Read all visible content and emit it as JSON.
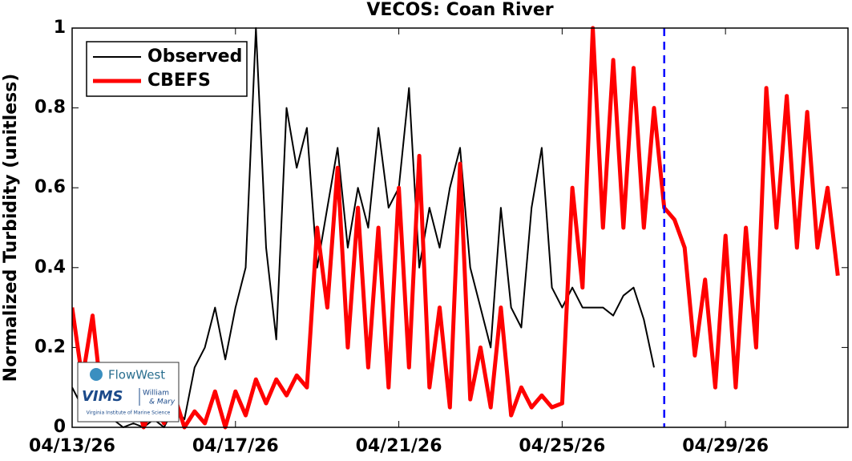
{
  "chart_data": {
    "type": "line",
    "title": "VECOS: Coan River",
    "y_label": "Normalized Turbidity (unitless)",
    "x": [
      "2026-04-13T00:00",
      "2026-04-13T06:00",
      "2026-04-13T12:00",
      "2026-04-13T18:00",
      "2026-04-14T00:00",
      "2026-04-14T06:00",
      "2026-04-14T12:00",
      "2026-04-14T18:00",
      "2026-04-15T00:00",
      "2026-04-15T06:00",
      "2026-04-15T12:00",
      "2026-04-15T18:00",
      "2026-04-16T00:00",
      "2026-04-16T06:00",
      "2026-04-16T12:00",
      "2026-04-16T18:00",
      "2026-04-17T00:00",
      "2026-04-17T06:00",
      "2026-04-17T12:00",
      "2026-04-17T18:00",
      "2026-04-18T00:00",
      "2026-04-18T06:00",
      "2026-04-18T12:00",
      "2026-04-18T18:00",
      "2026-04-19T00:00",
      "2026-04-19T06:00",
      "2026-04-19T12:00",
      "2026-04-19T18:00",
      "2026-04-20T00:00",
      "2026-04-20T06:00",
      "2026-04-20T12:00",
      "2026-04-20T18:00",
      "2026-04-21T00:00",
      "2026-04-21T06:00",
      "2026-04-21T12:00",
      "2026-04-21T18:00",
      "2026-04-22T00:00",
      "2026-04-22T06:00",
      "2026-04-22T12:00",
      "2026-04-22T18:00",
      "2026-04-23T00:00",
      "2026-04-23T06:00",
      "2026-04-23T12:00",
      "2026-04-23T18:00",
      "2026-04-24T00:00",
      "2026-04-24T06:00",
      "2026-04-24T12:00",
      "2026-04-24T18:00",
      "2026-04-25T00:00",
      "2026-04-25T06:00",
      "2026-04-25T12:00",
      "2026-04-25T18:00",
      "2026-04-26T00:00",
      "2026-04-26T06:00",
      "2026-04-26T12:00",
      "2026-04-26T18:00",
      "2026-04-27T00:00",
      "2026-04-27T06:00",
      "2026-04-27T12:00",
      "2026-04-27T18:00",
      "2026-04-28T00:00",
      "2026-04-28T06:00",
      "2026-04-28T12:00",
      "2026-04-28T18:00",
      "2026-04-29T00:00",
      "2026-04-29T06:00",
      "2026-04-29T12:00",
      "2026-04-29T18:00",
      "2026-04-30T00:00",
      "2026-04-30T06:00",
      "2026-04-30T12:00",
      "2026-04-30T18:00",
      "2026-05-01T00:00",
      "2026-05-01T06:00",
      "2026-05-01T12:00",
      "2026-05-01T18:00"
    ],
    "series": [
      {
        "name": "Observed",
        "color": "#000000",
        "width": 2,
        "values": [
          0.1,
          0.05,
          0.03,
          0.02,
          0.02,
          0.0,
          0.01,
          0.0,
          0.02,
          0.0,
          0.05,
          0.02,
          0.15,
          0.2,
          0.3,
          0.17,
          0.3,
          0.4,
          1.0,
          0.45,
          0.22,
          0.8,
          0.65,
          0.75,
          0.4,
          0.55,
          0.7,
          0.45,
          0.6,
          0.5,
          0.75,
          0.55,
          0.6,
          0.85,
          0.4,
          0.55,
          0.45,
          0.6,
          0.7,
          0.4,
          0.3,
          0.2,
          0.55,
          0.3,
          0.25,
          0.55,
          0.7,
          0.35,
          0.3,
          0.35,
          0.3,
          0.3,
          0.3,
          0.28,
          0.33,
          0.35,
          0.27,
          0.15,
          null,
          null,
          null,
          null,
          null,
          null,
          null,
          null,
          null,
          null,
          null,
          null,
          null,
          null,
          null,
          null,
          null,
          null
        ]
      },
      {
        "name": "CBEFS",
        "color": "#ff0000",
        "width": 5,
        "values": [
          0.3,
          0.12,
          0.28,
          0.05,
          0.15,
          0.02,
          0.1,
          0.0,
          0.06,
          0.01,
          0.08,
          0.0,
          0.04,
          0.01,
          0.09,
          0.0,
          0.09,
          0.03,
          0.12,
          0.06,
          0.12,
          0.08,
          0.13,
          0.1,
          0.5,
          0.3,
          0.65,
          0.2,
          0.55,
          0.15,
          0.5,
          0.1,
          0.6,
          0.15,
          0.68,
          0.1,
          0.3,
          0.05,
          0.66,
          0.07,
          0.2,
          0.05,
          0.3,
          0.03,
          0.1,
          0.05,
          0.08,
          0.05,
          0.06,
          0.6,
          0.35,
          1.0,
          0.5,
          0.92,
          0.5,
          0.9,
          0.5,
          0.8,
          0.55,
          0.52,
          0.45,
          0.18,
          0.37,
          0.1,
          0.48,
          0.1,
          0.5,
          0.2,
          0.85,
          0.5,
          0.83,
          0.45,
          0.79,
          0.45,
          0.6,
          0.38
        ]
      }
    ],
    "forecast_start": "2026-04-27T12:00",
    "forecast_color": "#0000ff",
    "xlim": [
      "2026-04-13T00:00",
      "2026-05-02T00:00"
    ],
    "xticks": [
      {
        "value": "2026-04-13T00:00",
        "label": "04/13/26"
      },
      {
        "value": "2026-04-17T00:00",
        "label": "04/17/26"
      },
      {
        "value": "2026-04-21T00:00",
        "label": "04/21/26"
      },
      {
        "value": "2026-04-25T00:00",
        "label": "04/25/26"
      },
      {
        "value": "2026-04-29T00:00",
        "label": "04/29/26"
      }
    ],
    "ylim": [
      0,
      1
    ],
    "yticks": [
      0,
      0.2,
      0.4,
      0.6,
      0.8,
      1
    ],
    "legend": "northwest"
  },
  "logo": {
    "flowwest": "FlowWest",
    "vims": "VIMS",
    "william": "William",
    "mary": "& Mary",
    "institute": "Virginia Institute of Marine Science"
  }
}
